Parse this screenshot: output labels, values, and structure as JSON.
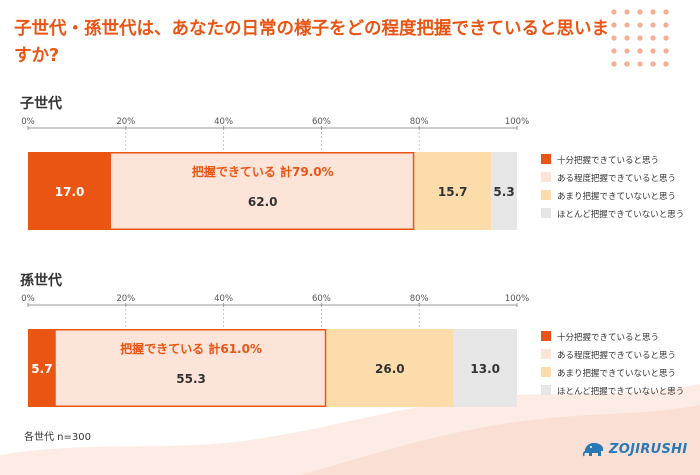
{
  "title": "子世代・孫世代は、あなたの日常の様子をどの程度把握できていると思いますか?",
  "footnote": "各世代 n=300",
  "logo": {
    "text": "ZOJIRUSHI",
    "color": "#2a78b6"
  },
  "colors": {
    "accent": "#ea5514",
    "series": [
      "#ea5514",
      "#fde4d8",
      "#fcdcab",
      "#e6e6e6"
    ]
  },
  "chart_data": [
    {
      "type": "bar",
      "orientation": "horizontal-stacked",
      "title": "子世代",
      "x_ticks": [
        "0%",
        "20%",
        "40%",
        "60%",
        "80%",
        "100%"
      ],
      "xlim": [
        0,
        100
      ],
      "legend_position": "right",
      "series": [
        {
          "name": "十分把握できていると思う",
          "value": 17.0,
          "label": "17.0"
        },
        {
          "name": "ある程度把握できていると思う",
          "value": 62.0,
          "label": "62.0"
        },
        {
          "name": "あまり把握できていないと思う",
          "value": 15.7,
          "label": "15.7"
        },
        {
          "name": "ほとんど把握できていないと思う",
          "value": 5.3,
          "label": "5.3"
        }
      ],
      "annotation": {
        "text": "把握できている 計79.0%",
        "total": 79.0
      }
    },
    {
      "type": "bar",
      "orientation": "horizontal-stacked",
      "title": "孫世代",
      "x_ticks": [
        "0%",
        "20%",
        "40%",
        "60%",
        "80%",
        "100%"
      ],
      "xlim": [
        0,
        100
      ],
      "legend_position": "right",
      "series": [
        {
          "name": "十分把握できていると思う",
          "value": 5.7,
          "label": "5.7"
        },
        {
          "name": "ある程度把握できていると思う",
          "value": 55.3,
          "label": "55.3"
        },
        {
          "name": "あまり把握できていないと思う",
          "value": 26.0,
          "label": "26.0"
        },
        {
          "name": "ほとんど把握できていないと思う",
          "value": 13.0,
          "label": "13.0"
        }
      ],
      "annotation": {
        "text": "把握できている 計61.0%",
        "total": 61.0
      }
    }
  ]
}
